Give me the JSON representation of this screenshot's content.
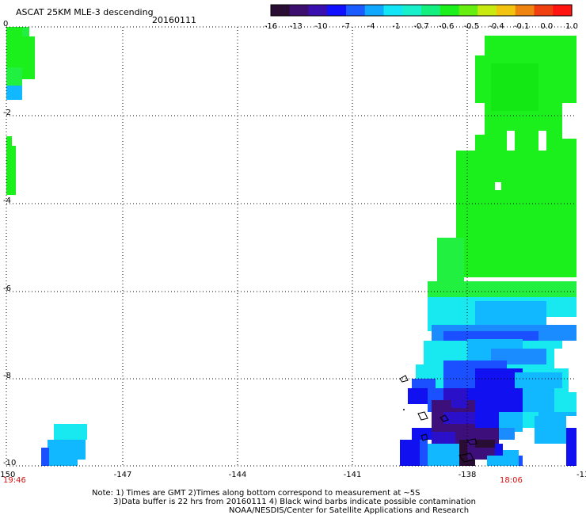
{
  "header": {
    "title": "ASCAT 25KM MLE-3 descending",
    "date": "20160111"
  },
  "colorbar": {
    "colors": [
      "#2a0d33",
      "#3c0f6e",
      "#3a0fb0",
      "#1010ff",
      "#1a5cff",
      "#10a8ff",
      "#12e6f6",
      "#18f0cc",
      "#14f080",
      "#1cf01c",
      "#66ee10",
      "#c8ea10",
      "#f2c410",
      "#f08410",
      "#f04010",
      "#ff1410"
    ],
    "tick_labels": [
      "-16",
      "-13",
      "-10",
      "-7",
      "-4",
      "-1",
      "-0.7",
      "-0.6",
      "-0.5",
      "-0.4",
      "-0.1",
      "0.0",
      "1.0"
    ]
  },
  "map": {
    "x_ticks": [
      "-150",
      "-147",
      "-144",
      "-141",
      "-138",
      "-13"
    ],
    "y_ticks": [
      "0",
      "-2",
      "-4",
      "-6",
      "-8",
      "-10"
    ],
    "time_left": "19:46",
    "time_right": "18:06",
    "palette": {
      "green": "#1cf01c",
      "green_light": "#22f040",
      "green_dark": "#14e814",
      "cyan": "#18e8f0",
      "cyan_light": "#20f0d8",
      "sky": "#12b8ff",
      "azure": "#1a8cff",
      "blue": "#1a50ff",
      "blue_deep": "#1010f0",
      "indigo": "#2a10c8",
      "purple": "#3c0f7a",
      "dark": "#2a0d33"
    }
  },
  "notes": {
    "line1": "Note: 1) Times are GMT 2)Times along bottom correspond to measurement at ~5S",
    "line2": "3)Data buffer is 22 hrs from 20160111 4) Black wind barbs indicate possible contamination",
    "line3": "NOAA/NESDIS/Center for Satellite Applications and Research"
  }
}
